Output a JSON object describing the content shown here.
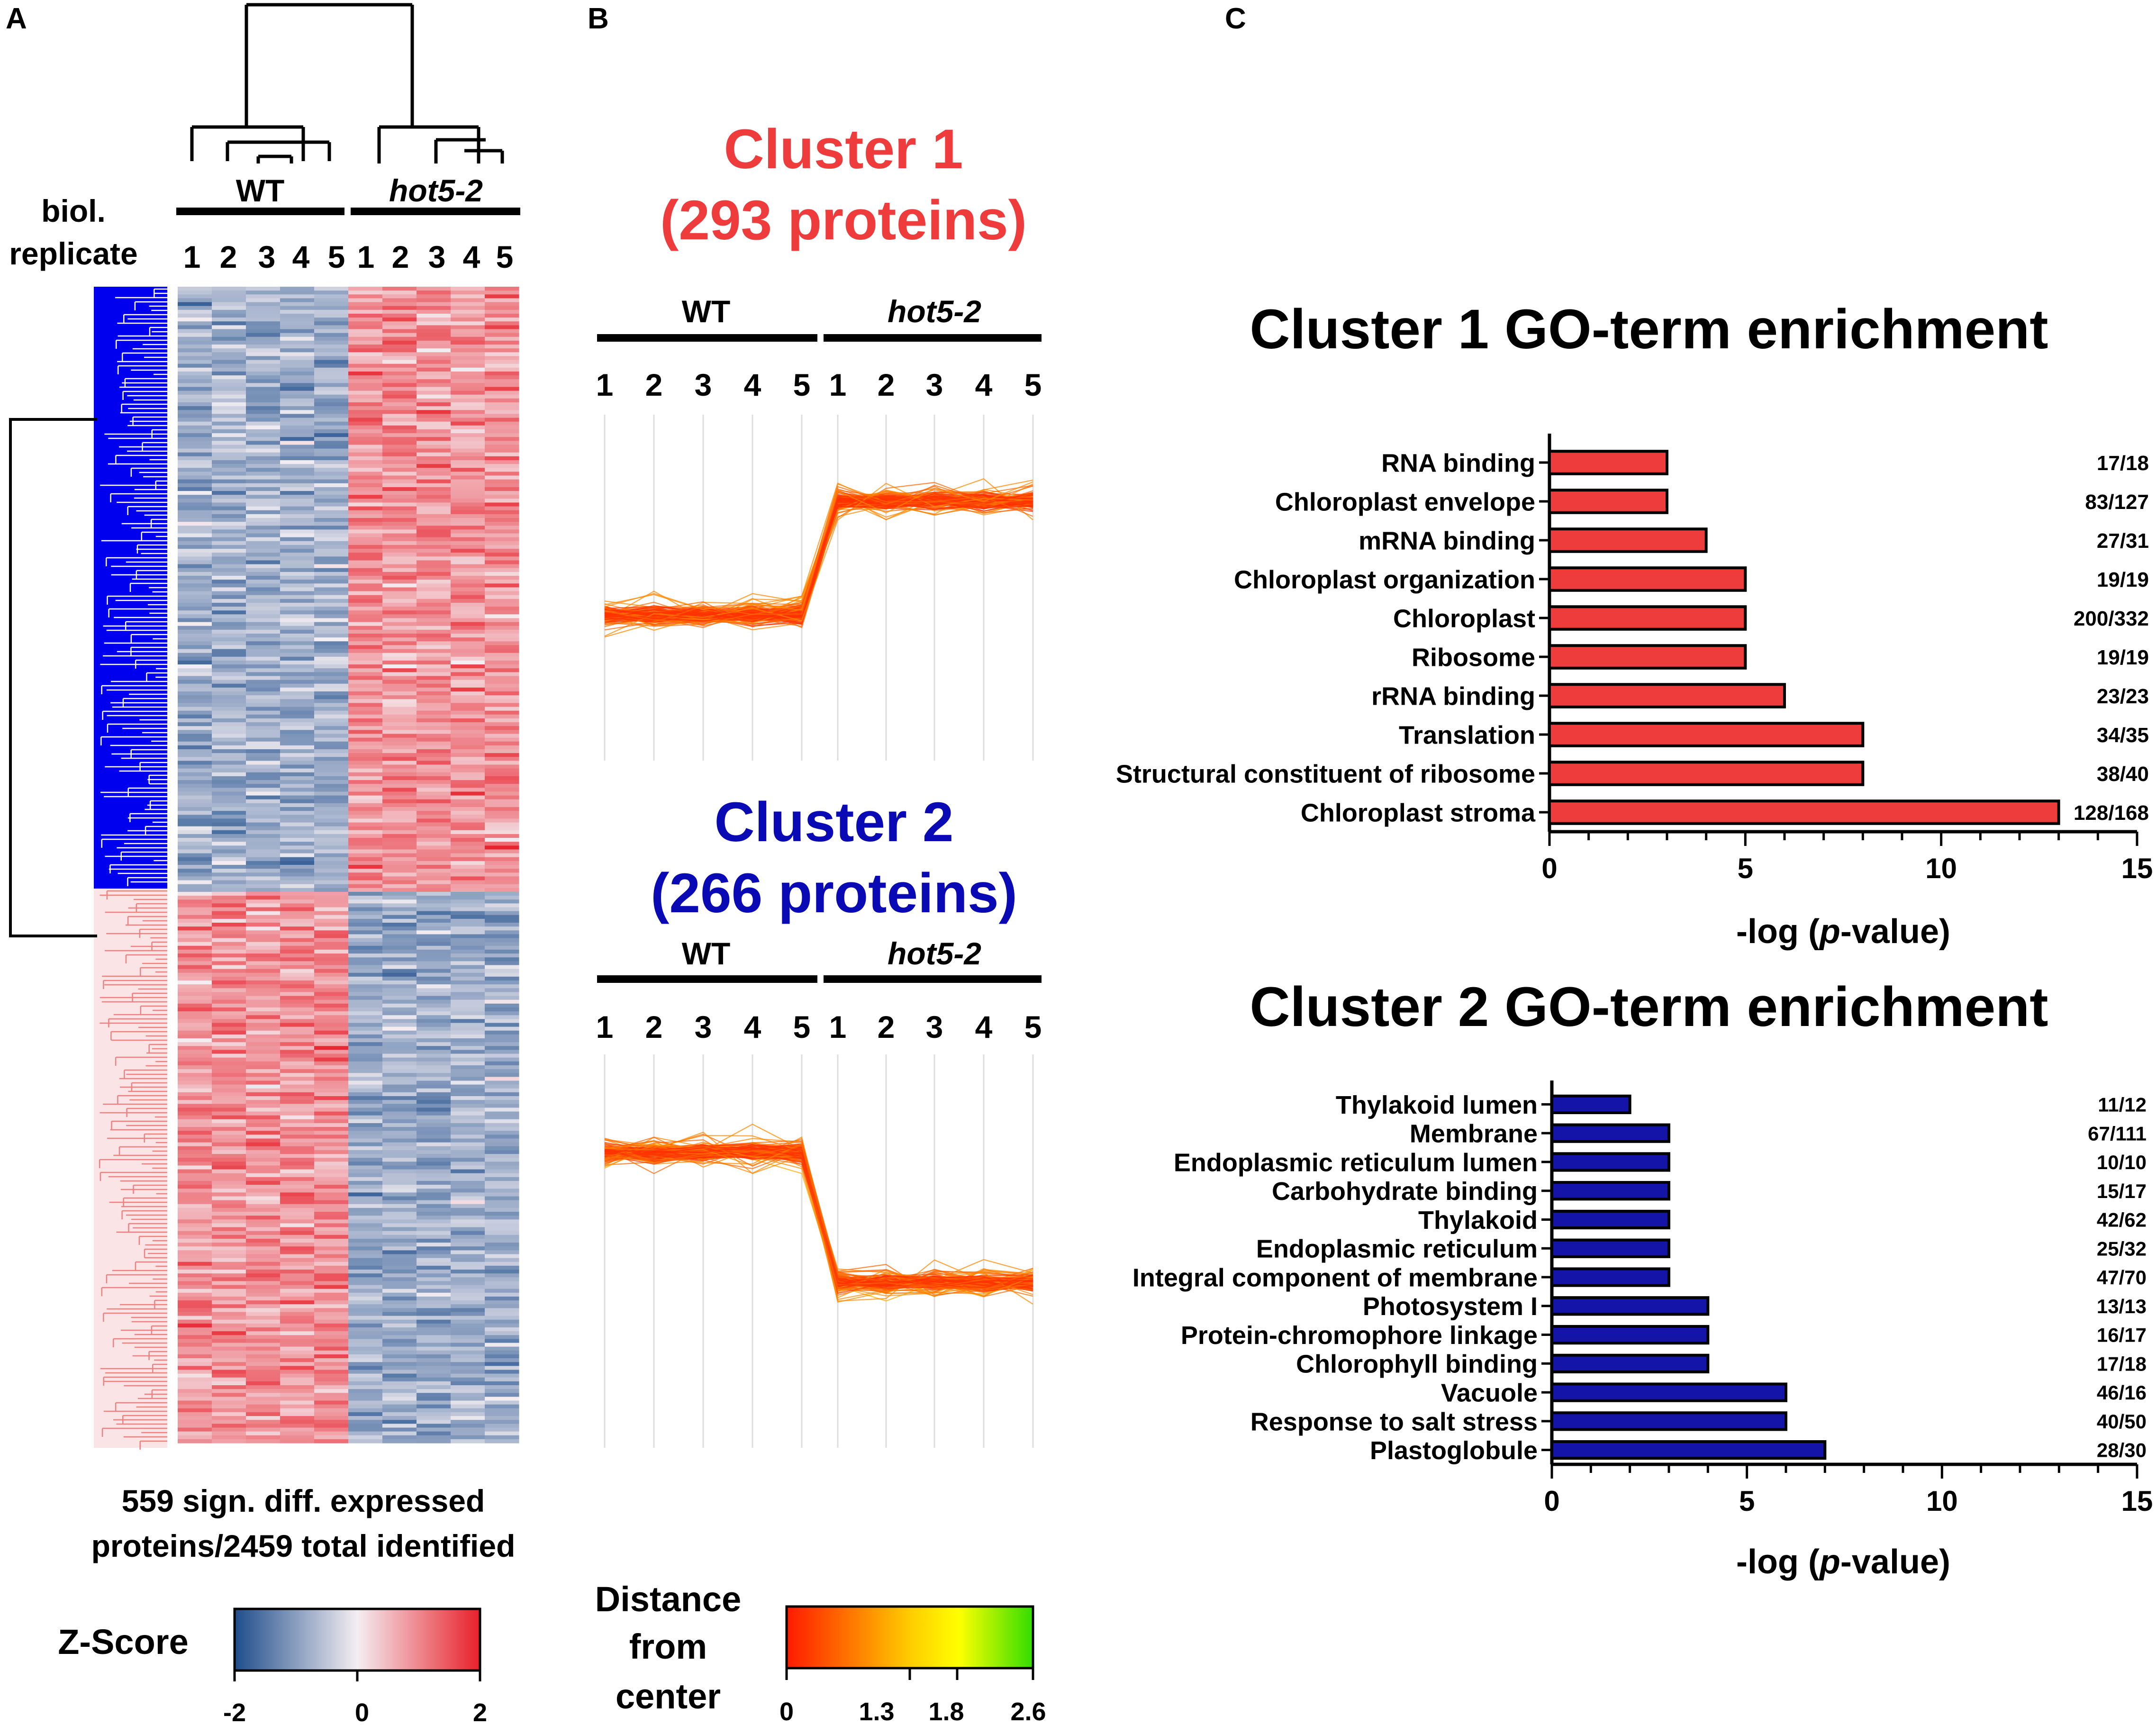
{
  "panels": {
    "a": {
      "letter": "A",
      "replicate_label_1": "biol.",
      "replicate_label_2": "replicate",
      "wt_label": "WT",
      "mutant_label": "hot5-2",
      "replicates": [
        "1",
        "2",
        "3",
        "4",
        "5"
      ],
      "caption_1": "559 sign. diff. expressed",
      "caption_2": "proteins/2459 total identified",
      "zscore_title": "Z-Score",
      "zscore_ticks": [
        "-2",
        "0",
        "2"
      ],
      "colors": {
        "blue_cluster": "#0000ee",
        "pink_cluster": "#f08080",
        "low": "#1f4e8c",
        "high": "#e8202a"
      }
    },
    "b": {
      "letter": "B",
      "wt_label": "WT",
      "mutant_label": "hot5-2",
      "replicates": [
        "1",
        "2",
        "3",
        "4",
        "5"
      ],
      "distance_title_1": "Distance",
      "distance_title_2": "from",
      "distance_title_3": "center",
      "distance_ticks": [
        "0",
        "1.3",
        "1.8",
        "2.6"
      ],
      "clusters": [
        {
          "title": "Cluster 1",
          "subtitle": "(293 proteins)",
          "color": "#ee3b3b"
        },
        {
          "title": "Cluster 2",
          "subtitle": "(266 proteins)",
          "color": "#0a0ab4"
        }
      ]
    },
    "c": {
      "letter": "C",
      "bar_border": "#000000"
    }
  },
  "chart_data": [
    {
      "type": "bar",
      "orientation": "horizontal",
      "title": "Cluster 1 GO-term enrichment",
      "xlabel": "-log (p-value)",
      "xlabel_pre": "-log (",
      "xlabel_italic": "p",
      "xlabel_post": "-value)",
      "xlim": [
        0,
        15
      ],
      "xticks": [
        "0",
        "5",
        "10",
        "15"
      ],
      "bar_color": "#ee3b3b",
      "categories": [
        "RNA binding",
        "Chloroplast envelope",
        "mRNA binding",
        "Chloroplast organization",
        "Chloroplast",
        "Ribosome",
        "rRNA binding",
        "Translation",
        "Structural constituent of ribosome",
        "Chloroplast stroma"
      ],
      "values": [
        3,
        3,
        4,
        5,
        5,
        5,
        6,
        8,
        8,
        13
      ],
      "counts": [
        "17/18",
        "83/127",
        "27/31",
        "19/19",
        "200/332",
        "19/19",
        "23/23",
        "34/35",
        "38/40",
        "128/168"
      ]
    },
    {
      "type": "bar",
      "orientation": "horizontal",
      "title": "Cluster 2 GO-term enrichment",
      "xlabel": "-log (p-value)",
      "xlabel_pre": "-log (",
      "xlabel_italic": "p",
      "xlabel_post": "-value)",
      "xlim": [
        0,
        15
      ],
      "xticks": [
        "0",
        "5",
        "10",
        "15"
      ],
      "bar_color": "#1414a8",
      "categories": [
        "Thylakoid lumen",
        "Membrane",
        "Endoplasmic reticulum lumen",
        "Carbohydrate binding",
        "Thylakoid",
        "Endoplasmic reticulum",
        "Integral component of membrane",
        "Photosystem I",
        "Protein-chromophore linkage",
        "Chlorophyll binding",
        "Vacuole",
        "Response to salt stress",
        "Plastoglobule"
      ],
      "values": [
        2,
        3,
        3,
        3,
        3,
        3,
        3,
        4,
        4,
        4,
        6,
        6,
        7
      ],
      "counts": [
        "11/12",
        "67/111",
        "10/10",
        "15/17",
        "42/62",
        "25/32",
        "47/70",
        "13/13",
        "16/17",
        "17/18",
        "46/16",
        "40/50",
        "28/30"
      ]
    }
  ]
}
